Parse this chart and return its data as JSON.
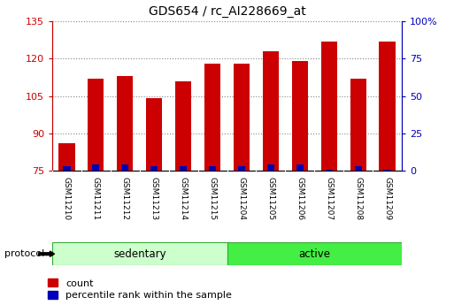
{
  "title": "GDS654 / rc_AI228669_at",
  "samples": [
    "GSM11210",
    "GSM11211",
    "GSM11212",
    "GSM11213",
    "GSM11214",
    "GSM11215",
    "GSM11204",
    "GSM11205",
    "GSM11206",
    "GSM11207",
    "GSM11208",
    "GSM11209"
  ],
  "counts": [
    86,
    112,
    113,
    104,
    111,
    118,
    118,
    123,
    119,
    127,
    112,
    127
  ],
  "percentile_ranks": [
    3,
    4,
    4,
    3,
    3,
    3,
    3,
    4,
    4,
    1,
    3,
    1
  ],
  "bar_bottom": 75,
  "ylim_left": [
    75,
    135
  ],
  "ylim_right": [
    0,
    100
  ],
  "yticks_left": [
    75,
    90,
    105,
    120,
    135
  ],
  "yticks_right": [
    0,
    25,
    50,
    75,
    100
  ],
  "yticklabels_right": [
    "0",
    "25",
    "50",
    "75",
    "100%"
  ],
  "bar_color_red": "#cc0000",
  "bar_color_blue": "#0000bb",
  "grid_color": "#888888",
  "bg_color": "#ffffff",
  "tick_color_left": "#cc0000",
  "tick_color_right": "#0000bb",
  "legend_count_label": "count",
  "legend_pct_label": "percentile rank within the sample",
  "sedentary_color": "#ccffcc",
  "active_color": "#44ee44",
  "sedentary_label": "sedentary",
  "active_label": "active",
  "protocol_label": "protocol",
  "cell_bg": "#d8d8d8",
  "sedentary_count": 6,
  "active_count": 6
}
